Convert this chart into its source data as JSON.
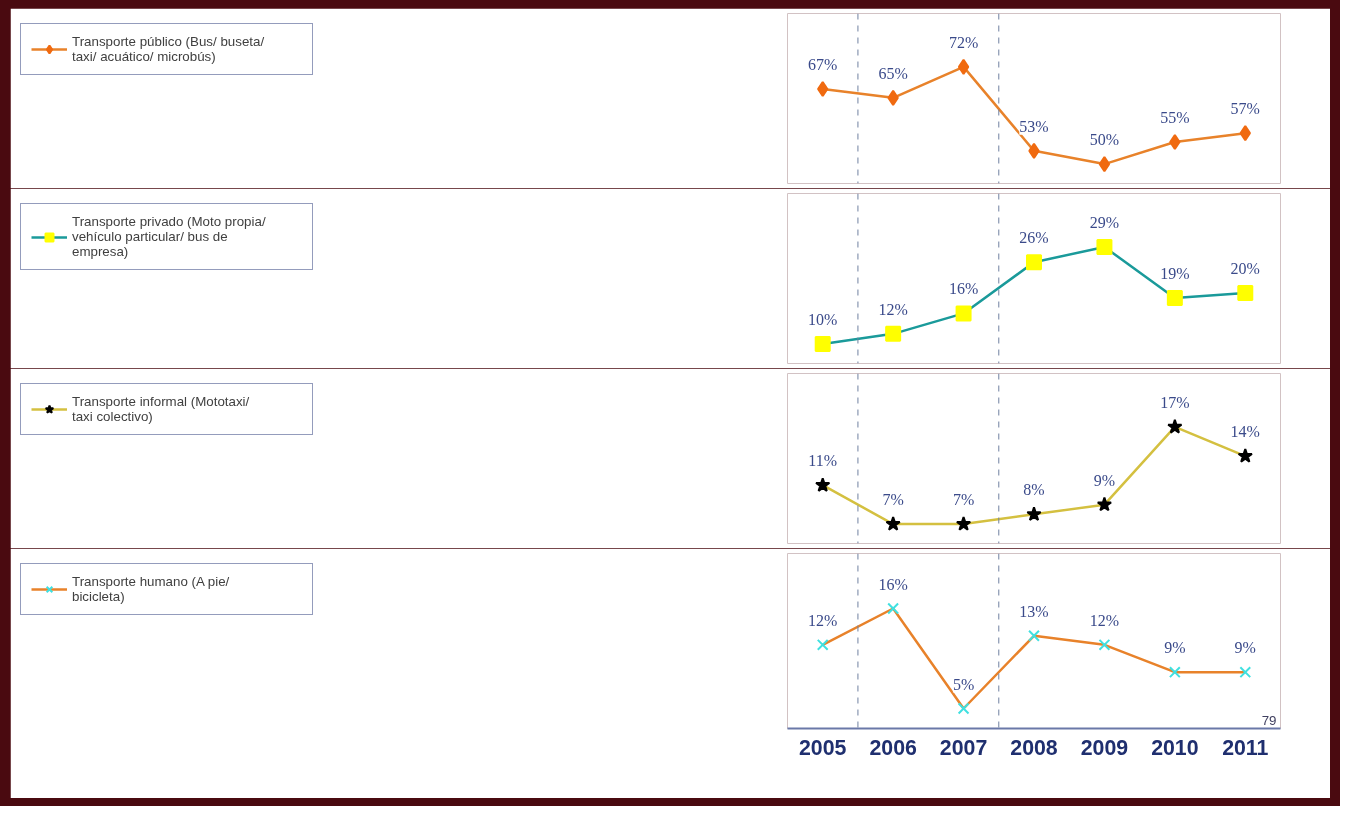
{
  "chart_data": [
    {
      "type": "line",
      "x": [
        2005,
        2006,
        2007,
        2008,
        2009,
        2010,
        2011
      ],
      "xlim": [
        2004.5,
        2011.5
      ],
      "xticks": [
        2005,
        2006,
        2007,
        2008,
        2009,
        2010,
        2011
      ],
      "tick_labels": false,
      "grid": false,
      "legend": "left",
      "marker": "diamond",
      "line_style": "solid",
      "ref_lines": [
        {
          "axis": "x",
          "value": 2005.5,
          "color": "#7080a0",
          "line_style": "dashed"
        },
        {
          "axis": "x",
          "value": 2007.5,
          "color": "#7080a0",
          "line_style": "dashed"
        }
      ],
      "series": [
        {
          "name": "Transporte público (Bus/ buseta/ taxi/ acuático/ microbús)",
          "color": "#e8822a",
          "colors": [
            "#f06a10",
            "#f06a10",
            "#f06a10",
            "#f06a10",
            "#f06a10",
            "#f06a10",
            "#f06a10"
          ],
          "values": [
            67,
            65,
            72,
            53,
            50,
            55,
            57
          ],
          "value_labels": [
            "67%",
            "65%",
            "72%",
            "53%",
            "50%",
            "55%",
            "57%"
          ]
        }
      ]
    },
    {
      "type": "line",
      "x": [
        2005,
        2006,
        2007,
        2008,
        2009,
        2010,
        2011
      ],
      "xlim": [
        2004.5,
        2011.5
      ],
      "xticks": [
        2005,
        2006,
        2007,
        2008,
        2009,
        2010,
        2011
      ],
      "tick_labels": false,
      "grid": false,
      "legend": "left",
      "marker": "square",
      "line_style": "solid",
      "ref_lines": [
        {
          "axis": "x",
          "value": 2005.5,
          "color": "#7080a0",
          "line_style": "dashed"
        },
        {
          "axis": "x",
          "value": 2007.5,
          "color": "#7080a0",
          "line_style": "dashed"
        }
      ],
      "series": [
        {
          "name": "Transporte privado (Moto propia/ vehículo particular/ bus de empresa)",
          "color": "#1a9a9a",
          "colors": [
            "#ffff00",
            "#ffff00",
            "#ffff00",
            "#ffff00",
            "#ffff00",
            "#ffff00",
            "#ffff00"
          ],
          "values": [
            10,
            12,
            16,
            26,
            29,
            19,
            20
          ],
          "value_labels": [
            "10%",
            "12%",
            "16%",
            "26%",
            "29%",
            "19%",
            "20%"
          ]
        }
      ]
    },
    {
      "type": "line",
      "x": [
        2005,
        2006,
        2007,
        2008,
        2009,
        2010,
        2011
      ],
      "xlim": [
        2004.5,
        2011.5
      ],
      "xticks": [
        2005,
        2006,
        2007,
        2008,
        2009,
        2010,
        2011
      ],
      "tick_labels": false,
      "grid": false,
      "legend": "left",
      "marker": "star",
      "line_style": "solid",
      "ref_lines": [
        {
          "axis": "x",
          "value": 2005.5,
          "color": "#7080a0",
          "line_style": "dashed"
        },
        {
          "axis": "x",
          "value": 2007.5,
          "color": "#7080a0",
          "line_style": "dashed"
        }
      ],
      "series": [
        {
          "name": "Transporte informal (Mototaxi/ taxi colectivo)",
          "color": "#d4c040",
          "colors": [
            "#000000",
            "#000000",
            "#000000",
            "#000000",
            "#000000",
            "#000000",
            "#000000"
          ],
          "values": [
            11,
            7,
            7,
            8,
            9,
            17,
            14
          ],
          "value_labels": [
            "11%",
            "7%",
            "7%",
            "8%",
            "9%",
            "17%",
            "14%"
          ]
        }
      ]
    },
    {
      "type": "line",
      "x": [
        2005,
        2006,
        2007,
        2008,
        2009,
        2010,
        2011
      ],
      "xlim": [
        2004.5,
        2011.5
      ],
      "xticks": [
        2005,
        2006,
        2007,
        2008,
        2009,
        2010,
        2011
      ],
      "tick_labels": "x",
      "grid": false,
      "legend": "left",
      "marker": "cross",
      "line_style": "solid",
      "ref_lines": [
        {
          "axis": "x",
          "value": 2005.5,
          "color": "#7080a0",
          "line_style": "dashed"
        },
        {
          "axis": "x",
          "value": 2007.5,
          "color": "#7080a0",
          "line_style": "dashed"
        }
      ],
      "annotations": [
        "79"
      ],
      "series": [
        {
          "name": "Transporte humano (A pie/ bicicleta)",
          "color": "#e8822a",
          "colors": [
            "#40e0e0",
            "#40e0e0",
            "#40e0e0",
            "#40e0e0",
            "#40e0e0",
            "#40e0e0",
            "#40e0e0"
          ],
          "values": [
            12,
            16,
            5,
            13,
            12,
            9,
            9
          ],
          "value_labels": [
            "12%",
            "16%",
            "5%",
            "13%",
            "12%",
            "9%",
            "9%"
          ]
        }
      ]
    }
  ]
}
